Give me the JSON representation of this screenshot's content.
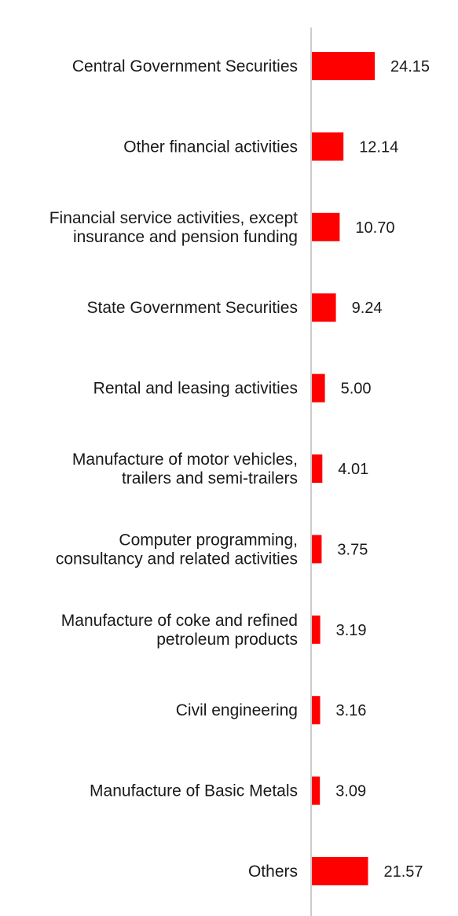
{
  "chart_data": {
    "type": "bar",
    "orientation": "horizontal",
    "title": "",
    "xlabel": "",
    "ylabel": "",
    "grid": false,
    "legend": "none",
    "bar_color": "#ff0000",
    "axis_color": "#cccccc",
    "categories": [
      [
        "Central Government Securities"
      ],
      [
        "Other financial activities"
      ],
      [
        "Financial service activities, except",
        "insurance and pension funding"
      ],
      [
        "State Government Securities"
      ],
      [
        "Rental and leasing activities"
      ],
      [
        "Manufacture of motor vehicles,",
        "trailers and semi-trailers"
      ],
      [
        "Computer programming,",
        "consultancy and related activities"
      ],
      [
        "Manufacture of coke and refined",
        "petroleum products"
      ],
      [
        "Civil engineering"
      ],
      [
        "Manufacture of Basic Metals"
      ],
      [
        "Others"
      ]
    ],
    "values": [
      24.15,
      12.14,
      10.7,
      9.24,
      5.0,
      4.01,
      3.75,
      3.19,
      3.16,
      3.09,
      21.57
    ],
    "value_labels": [
      "24.15",
      "12.14",
      "10.70",
      "9.24",
      "5.00",
      "4.01",
      "3.75",
      "3.19",
      "3.16",
      "3.09",
      "21.57"
    ]
  }
}
